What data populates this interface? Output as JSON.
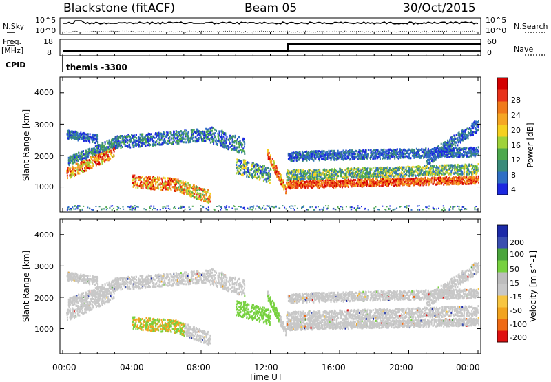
{
  "header": {
    "station": "Blackstone (fitACF)",
    "beam": "Beam 05",
    "date": "30/Oct/2015"
  },
  "left_labels": {
    "nsky": "N.Sky",
    "freq": "Freq.",
    "freq_unit": "[MHz]",
    "cpid": "CPID"
  },
  "right_labels": {
    "nsearch": "N.Search",
    "nave": "Nave"
  },
  "cpid_text": "themis -3300",
  "colors": {
    "power": [
      "#1c28e0",
      "#2f6fc4",
      "#3a8b7a",
      "#4da84d",
      "#9fd23a",
      "#f5d020",
      "#f5a623",
      "#f07a1a",
      "#e8321a",
      "#d40000"
    ],
    "velocity": [
      "#e01010",
      "#ef6a14",
      "#f2a31e",
      "#f7c541",
      "#c8c8c8",
      "#bdbdbd",
      "#77d13f",
      "#4aa53c",
      "#3a4fb0",
      "#1c2aa8"
    ]
  },
  "chart_data": [
    {
      "type": "line",
      "name": "noise",
      "series": [
        {
          "name": "N.Sky"
        },
        {
          "name": "N.Search"
        }
      ],
      "yticks_left": [
        "10^5",
        "10^0"
      ],
      "yticks_right": [
        "10^5",
        "10^0"
      ]
    },
    {
      "type": "line",
      "name": "frequency",
      "series": [
        {
          "name": "Freq.",
          "values": [
            10,
            10,
            10,
            10,
            10,
            10,
            10
          ]
        },
        {
          "name": "Nave",
          "values": [
            0,
            0,
            0,
            58,
            58,
            58,
            58
          ]
        }
      ],
      "yticks_left": [
        "18",
        "8"
      ],
      "yticks_right": [
        "60",
        "0"
      ]
    },
    {
      "type": "heatmap",
      "name": "power",
      "ylabel": "Slant Range [km]",
      "yticks": [
        "4000",
        "3000",
        "2000",
        "1000"
      ],
      "colorbar_label": "Power [dB]",
      "colorbar_ticks": [
        "28",
        "24",
        "20",
        "16",
        "12",
        "8",
        "4"
      ]
    },
    {
      "type": "heatmap",
      "name": "velocity",
      "ylabel": "Slant Range [km]",
      "yticks": [
        "4000",
        "3000",
        "2000",
        "1000"
      ],
      "colorbar_label": "Velocity [m s^-1]",
      "colorbar_ticks": [
        "200",
        "100",
        "50",
        "15",
        "-15",
        "-50",
        "-100",
        "-200"
      ]
    }
  ],
  "x_axis": {
    "ticks": [
      "00:00",
      "04:00",
      "08:00",
      "12:00",
      "16:00",
      "20:00",
      "00:00"
    ],
    "label": "Time UT"
  }
}
